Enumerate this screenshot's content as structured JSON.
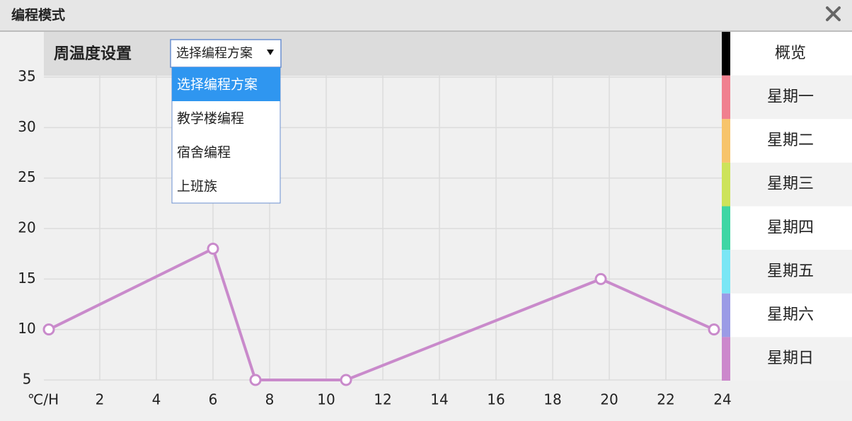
{
  "window": {
    "title": "编程模式"
  },
  "header": {
    "title": "周温度设置",
    "select": "选择编程方案",
    "options": [
      "选择编程方案",
      "教学楼编程",
      "宿舍编程",
      "上班族"
    ]
  },
  "tabs": [
    {
      "label": "概览",
      "color": "#000000"
    },
    {
      "label": "星期一",
      "color": "#f0808f"
    },
    {
      "label": "星期二",
      "color": "#f7c46c"
    },
    {
      "label": "星期三",
      "color": "#cde35a"
    },
    {
      "label": "星期四",
      "color": "#3fd6a4"
    },
    {
      "label": "星期五",
      "color": "#7ae6f5"
    },
    {
      "label": "星期六",
      "color": "#9b9be6"
    },
    {
      "label": "星期日",
      "color": "#cc88cc"
    }
  ],
  "chart_data": {
    "type": "line",
    "x": [
      0.2,
      6,
      7.5,
      10.7,
      19.7,
      23.7
    ],
    "values": [
      10,
      18,
      5,
      5,
      15,
      10
    ],
    "color": "#c98acb",
    "xlim": [
      0,
      24
    ],
    "xticks": [
      {
        "value": 0,
        "label": "℃/H"
      },
      2,
      4,
      6,
      8,
      10,
      12,
      14,
      16,
      18,
      20,
      22,
      24
    ],
    "ylim": [
      5,
      35
    ],
    "yticks": [
      5,
      10,
      15,
      20,
      25,
      30,
      35
    ],
    "grid": true
  }
}
